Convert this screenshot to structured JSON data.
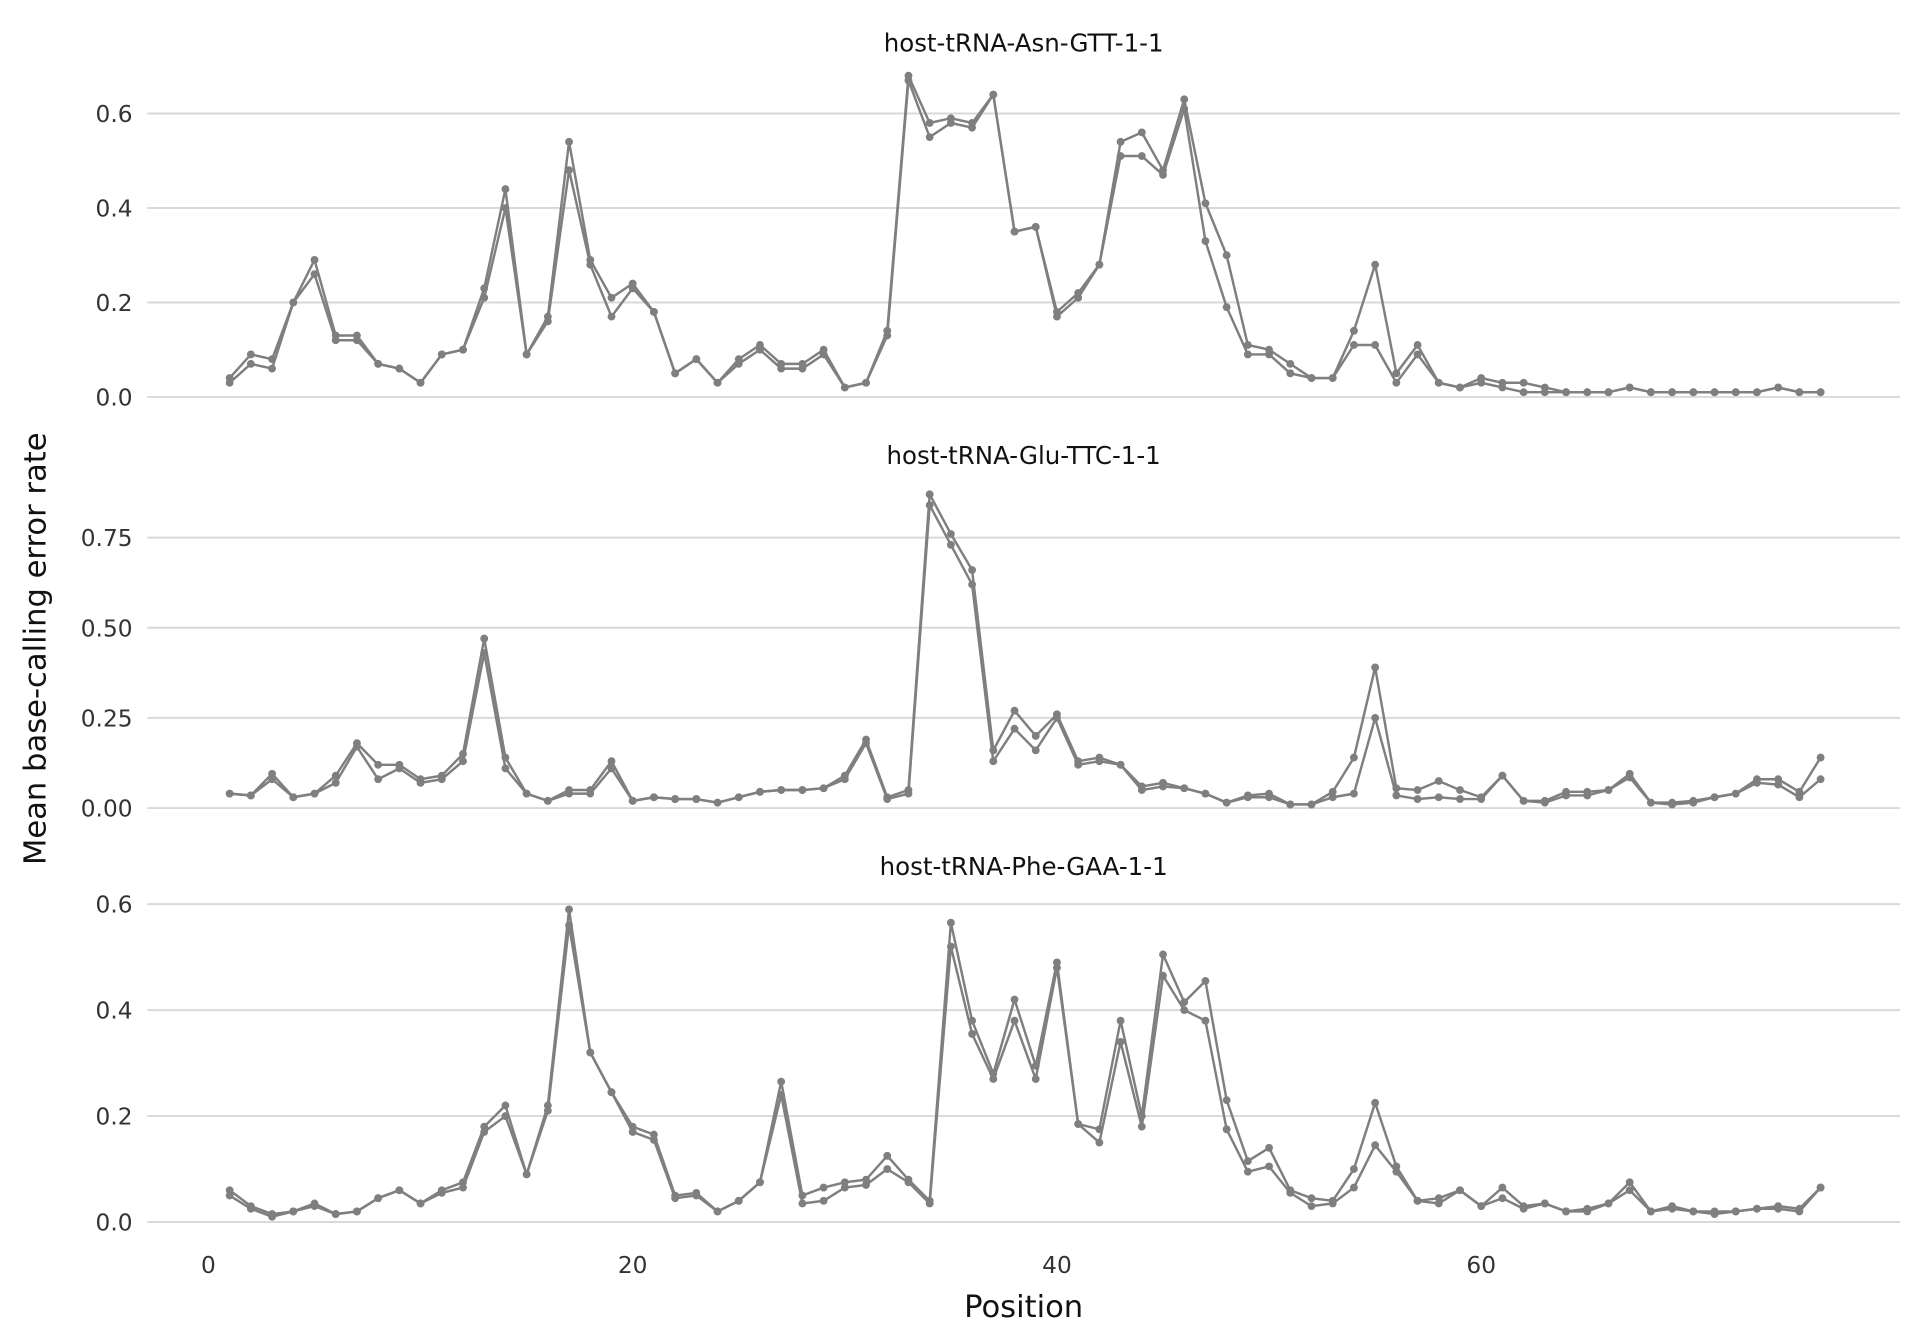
{
  "chart_data": {
    "type": "line",
    "xlabel": "Position",
    "ylabel": "Mean base-calling error rate",
    "xlim": [
      0,
      78
    ],
    "x_ticks": [
      "0",
      "20",
      "40",
      "60"
    ],
    "x_tick_values": [
      0,
      20,
      40,
      60
    ],
    "grid": "horizontal major gridlines",
    "line_color": "#7f7f7f",
    "grid_color": "#d9d9d9",
    "markers": "points",
    "x": [
      1,
      2,
      3,
      4,
      5,
      6,
      7,
      8,
      9,
      10,
      11,
      12,
      13,
      14,
      15,
      16,
      17,
      18,
      19,
      20,
      21,
      22,
      23,
      24,
      25,
      26,
      27,
      28,
      29,
      30,
      31,
      32,
      33,
      34,
      35,
      36,
      37,
      38,
      39,
      40,
      41,
      42,
      43,
      44,
      45,
      46,
      47,
      48,
      49,
      50,
      51,
      52,
      53,
      54,
      55,
      56,
      57,
      58,
      59,
      60,
      61,
      62,
      63,
      64,
      65,
      66,
      67,
      68,
      69,
      70,
      71,
      72,
      73,
      74,
      75,
      76
    ],
    "panels": [
      {
        "title": "host-tRNA-Asn-GTT-1-1",
        "ylim": [
          -0.02,
          0.69
        ],
        "y_ticks": [
          "0.0",
          "0.2",
          "0.4",
          "0.6"
        ],
        "y_tick_values": [
          0,
          0.2,
          0.4,
          0.6
        ],
        "series": [
          {
            "values": [
              0.04,
              0.09,
              0.08,
              0.2,
              0.29,
              0.13,
              0.13,
              0.07,
              0.06,
              0.03,
              0.09,
              0.1,
              0.23,
              0.44,
              0.09,
              0.17,
              0.54,
              0.29,
              0.21,
              0.24,
              0.18,
              0.05,
              0.08,
              0.03,
              0.08,
              0.11,
              0.07,
              0.07,
              0.1,
              0.02,
              0.03,
              0.14,
              0.68,
              0.58,
              0.59,
              0.58,
              0.64,
              0.35,
              0.36,
              0.18,
              0.22,
              0.28,
              0.54,
              0.56,
              0.48,
              0.63,
              0.41,
              0.3,
              0.11,
              0.1,
              0.07,
              0.04,
              0.04,
              0.14,
              0.28,
              0.05,
              0.11,
              0.03,
              0.02,
              0.04,
              0.03,
              0.03,
              0.02,
              0.01,
              0.01,
              0.01,
              0.02,
              0.01,
              0.01,
              0.01,
              0.01,
              0.01,
              0.01,
              0.02,
              0.01,
              0.01
            ]
          },
          {
            "values": [
              0.03,
              0.07,
              0.06,
              0.2,
              0.26,
              0.12,
              0.12,
              0.07,
              0.06,
              0.03,
              0.09,
              0.1,
              0.21,
              0.4,
              0.09,
              0.16,
              0.48,
              0.28,
              0.17,
              0.23,
              0.18,
              0.05,
              0.08,
              0.03,
              0.07,
              0.1,
              0.06,
              0.06,
              0.09,
              0.02,
              0.03,
              0.13,
              0.67,
              0.55,
              0.58,
              0.57,
              0.64,
              0.35,
              0.36,
              0.17,
              0.21,
              0.28,
              0.51,
              0.51,
              0.47,
              0.61,
              0.33,
              0.19,
              0.09,
              0.09,
              0.05,
              0.04,
              0.04,
              0.11,
              0.11,
              0.03,
              0.09,
              0.03,
              0.02,
              0.03,
              0.02,
              0.01,
              0.01,
              0.01,
              0.01,
              0.01,
              0.02,
              0.01,
              0.01,
              0.01,
              0.01,
              0.01,
              0.01,
              0.02,
              0.01,
              0.01
            ]
          }
        ]
      },
      {
        "title": "host-tRNA-Glu-TTC-1-1",
        "ylim": [
          -0.03,
          0.9
        ],
        "y_ticks": [
          "0.00",
          "0.25",
          "0.50",
          "0.75"
        ],
        "y_tick_values": [
          0,
          0.25,
          0.5,
          0.75
        ],
        "series": [
          {
            "values": [
              0.04,
              0.035,
              0.095,
              0.03,
              0.04,
              0.09,
              0.18,
              0.12,
              0.12,
              0.08,
              0.09,
              0.15,
              0.47,
              0.14,
              0.04,
              0.02,
              0.05,
              0.05,
              0.13,
              0.02,
              0.03,
              0.025,
              0.025,
              0.015,
              0.03,
              0.045,
              0.05,
              0.05,
              0.055,
              0.09,
              0.19,
              0.03,
              0.05,
              0.87,
              0.76,
              0.66,
              0.16,
              0.27,
              0.2,
              0.26,
              0.13,
              0.14,
              0.12,
              0.06,
              0.07,
              0.055,
              0.04,
              0.015,
              0.035,
              0.04,
              0.01,
              0.01,
              0.045,
              0.14,
              0.39,
              0.055,
              0.05,
              0.075,
              0.05,
              0.03,
              0.09,
              0.02,
              0.02,
              0.045,
              0.045,
              0.05,
              0.095,
              0.015,
              0.015,
              0.02,
              0.03,
              0.04,
              0.08,
              0.08,
              0.045,
              0.14
            ]
          },
          {
            "values": [
              0.04,
              0.035,
              0.08,
              0.03,
              0.04,
              0.07,
              0.17,
              0.08,
              0.11,
              0.07,
              0.08,
              0.13,
              0.43,
              0.11,
              0.04,
              0.02,
              0.04,
              0.04,
              0.11,
              0.02,
              0.03,
              0.025,
              0.025,
              0.015,
              0.03,
              0.045,
              0.05,
              0.05,
              0.055,
              0.08,
              0.18,
              0.025,
              0.04,
              0.84,
              0.73,
              0.62,
              0.13,
              0.22,
              0.16,
              0.25,
              0.12,
              0.13,
              0.12,
              0.05,
              0.06,
              0.055,
              0.04,
              0.015,
              0.03,
              0.03,
              0.01,
              0.01,
              0.03,
              0.04,
              0.25,
              0.035,
              0.025,
              0.03,
              0.025,
              0.025,
              0.09,
              0.02,
              0.015,
              0.035,
              0.035,
              0.05,
              0.085,
              0.015,
              0.01,
              0.015,
              0.03,
              0.04,
              0.07,
              0.065,
              0.03,
              0.08
            ]
          }
        ]
      },
      {
        "title": "host-tRNA-Phe-GAA-1-1",
        "ylim": [
          -0.02,
          0.62
        ],
        "y_ticks": [
          "0.0",
          "0.2",
          "0.4",
          "0.6"
        ],
        "y_tick_values": [
          0,
          0.2,
          0.4,
          0.6
        ],
        "series": [
          {
            "values": [
              0.06,
              0.03,
              0.015,
              0.02,
              0.035,
              0.015,
              0.02,
              0.045,
              0.06,
              0.035,
              0.06,
              0.075,
              0.18,
              0.22,
              0.09,
              0.22,
              0.59,
              0.32,
              0.245,
              0.18,
              0.165,
              0.05,
              0.055,
              0.02,
              0.04,
              0.075,
              0.265,
              0.05,
              0.065,
              0.075,
              0.08,
              0.125,
              0.08,
              0.04,
              0.565,
              0.38,
              0.28,
              0.42,
              0.295,
              0.49,
              0.185,
              0.175,
              0.38,
              0.2,
              0.505,
              0.415,
              0.455,
              0.23,
              0.115,
              0.14,
              0.06,
              0.045,
              0.04,
              0.1,
              0.225,
              0.105,
              0.04,
              0.045,
              0.06,
              0.03,
              0.065,
              0.03,
              0.035,
              0.02,
              0.025,
              0.035,
              0.075,
              0.02,
              0.03,
              0.02,
              0.02,
              0.02,
              0.025,
              0.03,
              0.025,
              0.065
            ]
          },
          {
            "values": [
              0.05,
              0.025,
              0.01,
              0.02,
              0.03,
              0.015,
              0.02,
              0.045,
              0.06,
              0.035,
              0.055,
              0.065,
              0.17,
              0.2,
              0.09,
              0.21,
              0.56,
              0.32,
              0.245,
              0.17,
              0.155,
              0.045,
              0.05,
              0.02,
              0.04,
              0.075,
              0.24,
              0.035,
              0.04,
              0.065,
              0.07,
              0.1,
              0.075,
              0.035,
              0.52,
              0.355,
              0.27,
              0.38,
              0.27,
              0.48,
              0.185,
              0.15,
              0.34,
              0.18,
              0.465,
              0.4,
              0.38,
              0.175,
              0.095,
              0.105,
              0.055,
              0.03,
              0.035,
              0.065,
              0.145,
              0.095,
              0.04,
              0.035,
              0.06,
              0.03,
              0.045,
              0.025,
              0.035,
              0.02,
              0.02,
              0.035,
              0.06,
              0.02,
              0.025,
              0.02,
              0.015,
              0.02,
              0.025,
              0.025,
              0.02,
              0.065
            ]
          }
        ]
      }
    ]
  }
}
